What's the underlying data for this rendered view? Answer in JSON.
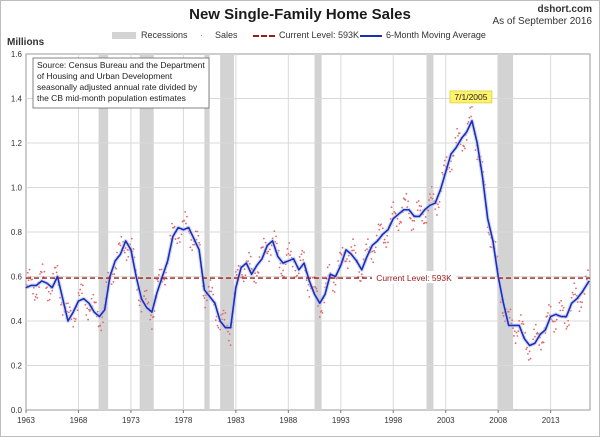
{
  "header": {
    "title": "New Single-Family Home Sales",
    "brand": "dshort.com",
    "date_note": "As of September 2016"
  },
  "colors": {
    "sales": "#e06a6a",
    "moving_average": "#1a2fb8",
    "current_level": "#9b1a1a",
    "recession": "#d3d3d3",
    "grid": "#d9d9d9"
  },
  "chart_data": {
    "type": "line",
    "title": "New Single-Family Home Sales",
    "ylabel": "Millions",
    "xlabel": "",
    "ylim": [
      0,
      1.6
    ],
    "xlim": [
      1963,
      2016.75
    ],
    "x_ticks": [
      "1963",
      "1968",
      "1973",
      "1978",
      "1983",
      "1988",
      "1993",
      "1998",
      "2003",
      "2008",
      "2013"
    ],
    "y_ticks": [
      "0.0",
      "0.2",
      "0.4",
      "0.6",
      "0.8",
      "1.0",
      "1.2",
      "1.4",
      "1.6"
    ],
    "grid": true,
    "legend": [
      {
        "label": "Recessions",
        "symbol": "grey-bar"
      },
      {
        "label": "Sales",
        "symbol": "dots"
      },
      {
        "label": "Current Level: 593K",
        "symbol": "dashed-line"
      },
      {
        "label": "6-Month Moving Average",
        "symbol": "line"
      }
    ],
    "legend_position": "top",
    "recessions": [
      {
        "start": 1969.92,
        "end": 1970.83
      },
      {
        "start": 1973.83,
        "end": 1975.17
      },
      {
        "start": 1980.0,
        "end": 1980.5
      },
      {
        "start": 1981.5,
        "end": 1982.83
      },
      {
        "start": 1990.5,
        "end": 1991.17
      },
      {
        "start": 2001.17,
        "end": 2001.83
      },
      {
        "start": 2007.92,
        "end": 2009.42
      }
    ],
    "current_level": {
      "value": 0.593,
      "label": "Current Level: 593K"
    },
    "peak_annotation": {
      "x": 2005.5,
      "y": 1.389,
      "label": "7/1/2005"
    },
    "source_note": [
      "Source: Census Bureau and the Department",
      "of Housing and Urban Development",
      "seasonally adjusted annual rate divided by",
      "the CB mid-month population estimates"
    ],
    "series": [
      {
        "name": "6-Month Moving Average",
        "points": [
          [
            1963,
            0.55
          ],
          [
            1963.5,
            0.56
          ],
          [
            1964,
            0.56
          ],
          [
            1964.5,
            0.58
          ],
          [
            1965,
            0.57
          ],
          [
            1965.5,
            0.55
          ],
          [
            1966,
            0.6
          ],
          [
            1966.5,
            0.5
          ],
          [
            1967,
            0.4
          ],
          [
            1967.5,
            0.44
          ],
          [
            1968,
            0.49
          ],
          [
            1968.5,
            0.5
          ],
          [
            1969,
            0.48
          ],
          [
            1969.5,
            0.44
          ],
          [
            1970,
            0.42
          ],
          [
            1970.5,
            0.45
          ],
          [
            1971,
            0.6
          ],
          [
            1971.5,
            0.67
          ],
          [
            1972,
            0.7
          ],
          [
            1972.5,
            0.76
          ],
          [
            1973,
            0.72
          ],
          [
            1973.5,
            0.6
          ],
          [
            1974,
            0.5
          ],
          [
            1974.5,
            0.46
          ],
          [
            1975,
            0.44
          ],
          [
            1975.5,
            0.53
          ],
          [
            1976,
            0.6
          ],
          [
            1976.5,
            0.67
          ],
          [
            1977,
            0.78
          ],
          [
            1977.5,
            0.82
          ],
          [
            1978,
            0.81
          ],
          [
            1978.5,
            0.82
          ],
          [
            1979,
            0.77
          ],
          [
            1979.5,
            0.72
          ],
          [
            1980,
            0.54
          ],
          [
            1980.5,
            0.51
          ],
          [
            1981,
            0.48
          ],
          [
            1981.5,
            0.4
          ],
          [
            1982,
            0.37
          ],
          [
            1982.5,
            0.37
          ],
          [
            1983,
            0.55
          ],
          [
            1983.5,
            0.64
          ],
          [
            1984,
            0.66
          ],
          [
            1984.5,
            0.61
          ],
          [
            1985,
            0.65
          ],
          [
            1985.5,
            0.68
          ],
          [
            1986,
            0.74
          ],
          [
            1986.5,
            0.76
          ],
          [
            1987,
            0.69
          ],
          [
            1987.5,
            0.66
          ],
          [
            1988,
            0.67
          ],
          [
            1988.5,
            0.68
          ],
          [
            1989,
            0.63
          ],
          [
            1989.5,
            0.66
          ],
          [
            1990,
            0.58
          ],
          [
            1990.5,
            0.52
          ],
          [
            1991,
            0.48
          ],
          [
            1991.5,
            0.52
          ],
          [
            1992,
            0.61
          ],
          [
            1992.5,
            0.6
          ],
          [
            1993,
            0.65
          ],
          [
            1993.5,
            0.72
          ],
          [
            1994,
            0.7
          ],
          [
            1994.5,
            0.67
          ],
          [
            1995,
            0.63
          ],
          [
            1995.5,
            0.69
          ],
          [
            1996,
            0.74
          ],
          [
            1996.5,
            0.76
          ],
          [
            1997,
            0.79
          ],
          [
            1997.5,
            0.81
          ],
          [
            1998,
            0.86
          ],
          [
            1998.5,
            0.88
          ],
          [
            1999,
            0.9
          ],
          [
            1999.5,
            0.9
          ],
          [
            2000,
            0.87
          ],
          [
            2000.5,
            0.87
          ],
          [
            2001,
            0.9
          ],
          [
            2001.5,
            0.92
          ],
          [
            2002,
            0.93
          ],
          [
            2002.5,
            0.99
          ],
          [
            2003,
            1.07
          ],
          [
            2003.5,
            1.15
          ],
          [
            2004,
            1.18
          ],
          [
            2004.5,
            1.22
          ],
          [
            2005,
            1.25
          ],
          [
            2005.5,
            1.3
          ],
          [
            2006,
            1.2
          ],
          [
            2006.5,
            1.05
          ],
          [
            2007,
            0.86
          ],
          [
            2007.5,
            0.76
          ],
          [
            2008,
            0.6
          ],
          [
            2008.5,
            0.48
          ],
          [
            2009,
            0.38
          ],
          [
            2009.5,
            0.38
          ],
          [
            2010,
            0.38
          ],
          [
            2010.5,
            0.32
          ],
          [
            2011,
            0.29
          ],
          [
            2011.5,
            0.3
          ],
          [
            2012,
            0.34
          ],
          [
            2012.5,
            0.36
          ],
          [
            2013,
            0.42
          ],
          [
            2013.5,
            0.43
          ],
          [
            2014,
            0.42
          ],
          [
            2014.5,
            0.42
          ],
          [
            2015,
            0.48
          ],
          [
            2015.5,
            0.5
          ],
          [
            2016,
            0.53
          ],
          [
            2016.67,
            0.58
          ]
        ]
      }
    ]
  }
}
